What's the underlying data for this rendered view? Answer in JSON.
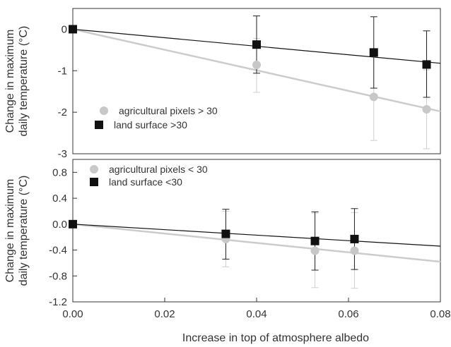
{
  "chart_data": [
    {
      "type": "scatter",
      "panel": "top",
      "ylabel": [
        "Change in maximum",
        "daily temperature (°C)"
      ],
      "xlim": [
        0,
        0.08
      ],
      "ylim": [
        -3,
        0.5
      ],
      "yticks": [
        "0",
        "-1",
        "-2",
        "-3"
      ],
      "ytick_values": [
        0,
        -1,
        -2,
        -3
      ],
      "legend_position": "left",
      "series": [
        {
          "name": "agricultural pixels > 30",
          "color": "#c8c8c8",
          "marker": "circle",
          "x": [
            0.0,
            0.04,
            0.0655,
            0.077
          ],
          "y": [
            0.0,
            -0.86,
            -1.63,
            -1.93
          ],
          "err_low": [
            0.0,
            -1.52,
            -2.68,
            -2.88
          ],
          "err_high": [
            0.0,
            -0.22,
            -0.58,
            -0.98
          ],
          "fit": [
            [
              0.0,
              0.0
            ],
            [
              0.08,
              -1.98
            ]
          ]
        },
        {
          "name": "land surface >30",
          "color": "#111111",
          "marker": "square",
          "x": [
            0.0,
            0.04,
            0.0655,
            0.077
          ],
          "y": [
            0.0,
            -0.37,
            -0.56,
            -0.85
          ],
          "err_low": [
            0.0,
            -1.06,
            -1.42,
            -1.64
          ],
          "err_high": [
            0.0,
            0.32,
            0.3,
            -0.04
          ],
          "fit": [
            [
              0.0,
              0.0
            ],
            [
              0.08,
              -0.82
            ]
          ]
        }
      ]
    },
    {
      "type": "scatter",
      "panel": "bottom",
      "xlabel": "Increase in top of atmosphere albedo",
      "ylabel": [
        "Change in maximum",
        "daily temperature (°C)"
      ],
      "xlim": [
        0,
        0.08
      ],
      "ylim": [
        -1.2,
        1.0
      ],
      "xticks": [
        "0.00",
        "0.02",
        "0.04",
        "0.06",
        "0.08"
      ],
      "xtick_values": [
        0,
        0.02,
        0.04,
        0.06,
        0.08
      ],
      "yticks": [
        "0.8",
        "0.4",
        "0.0",
        "-0.4",
        "-0.8",
        "-1.2"
      ],
      "ytick_values": [
        0.8,
        0.4,
        0.0,
        -0.4,
        -0.8,
        -1.2
      ],
      "legend_position": "top-left",
      "series": [
        {
          "name": "agricultural pixels < 30",
          "color": "#c8c8c8",
          "marker": "circle",
          "x": [
            0.0,
            0.0333,
            0.0527,
            0.0613
          ],
          "y": [
            0.0,
            -0.23,
            -0.41,
            -0.41
          ],
          "err_low": [
            0.0,
            -0.66,
            -0.98,
            -0.99
          ],
          "err_high": [
            0.0,
            0.2,
            0.17,
            0.18
          ],
          "fit": [
            [
              0.0,
              0.0
            ],
            [
              0.08,
              -0.58
            ]
          ]
        },
        {
          "name": "land surface <30",
          "color": "#111111",
          "marker": "square",
          "x": [
            0.0,
            0.0333,
            0.0527,
            0.0613
          ],
          "y": [
            0.0,
            -0.15,
            -0.26,
            -0.23
          ],
          "err_low": [
            0.0,
            -0.54,
            -0.71,
            -0.7
          ],
          "err_high": [
            0.0,
            0.23,
            0.19,
            0.24
          ],
          "fit": [
            [
              0.0,
              0.0
            ],
            [
              0.08,
              -0.34
            ]
          ]
        }
      ]
    }
  ]
}
